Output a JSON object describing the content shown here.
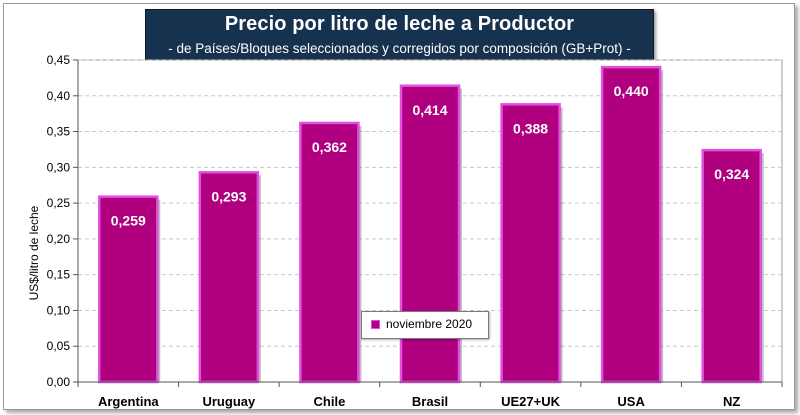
{
  "chart_data": {
    "type": "bar",
    "title": "Precio por litro de leche a Productor",
    "subtitle": "-  de Países/Bloques seleccionados y corregidos por composición (GB+Prot) -",
    "ylabel": "US$/litro de leche",
    "xlabel": "",
    "categories": [
      "Argentina",
      "Uruguay",
      "Chile",
      "Brasil",
      "UE27+UK",
      "USA",
      "NZ"
    ],
    "series": [
      {
        "name": "noviembre 2020",
        "values": [
          0.259,
          0.293,
          0.362,
          0.414,
          0.388,
          0.44,
          0.324
        ]
      }
    ],
    "data_labels": [
      "0,259",
      "0,293",
      "0,362",
      "0,414",
      "0,388",
      "0,440",
      "0,324"
    ],
    "ylim": [
      0,
      0.45
    ],
    "yticks": [
      "0,00",
      "0,05",
      "0,10",
      "0,15",
      "0,20",
      "0,25",
      "0,30",
      "0,35",
      "0,40",
      "0,45"
    ],
    "grid": true,
    "legend_position": "bottom-center",
    "colors": {
      "bar_fill": "#b0007f",
      "bar_edge": "#e04fe0",
      "title_bg": "#17324e",
      "plot_bg": "#ffffff",
      "gridline": "#c8c8c8"
    }
  }
}
